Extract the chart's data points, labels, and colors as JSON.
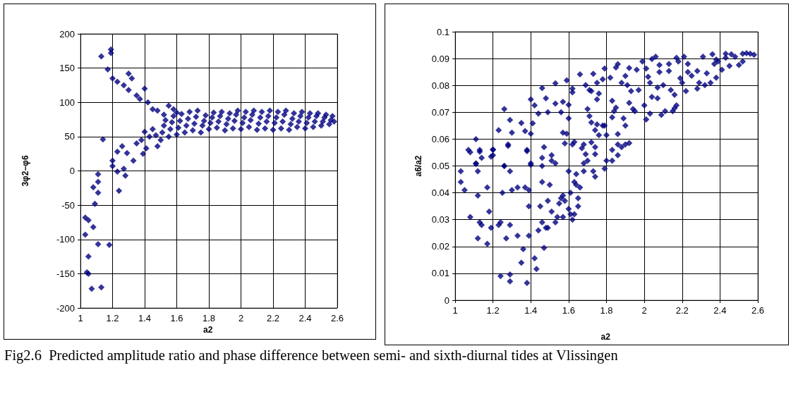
{
  "chart_data": [
    {
      "type": "scatter",
      "xlabel": "a2",
      "ylabel": "3φ2−φ6",
      "xlim": [
        1,
        2.6
      ],
      "xticks": [
        1,
        1.2,
        1.4,
        1.6,
        1.8,
        2,
        2.2,
        2.4,
        2.6
      ],
      "ylim": [
        -200,
        200
      ],
      "yticks": [
        -200,
        -150,
        -100,
        -50,
        0,
        50,
        100,
        150,
        200
      ],
      "grid": true,
      "marker": "diamond",
      "color": "#000080",
      "x": [
        1.03,
        1.05,
        1.08,
        1.03,
        1.11,
        1.18,
        1.05,
        1.04,
        1.05,
        1.07,
        1.13,
        1.09,
        1.11,
        1.08,
        1.11,
        1.11,
        1.14,
        1.2,
        1.2,
        1.23,
        1.26,
        1.29,
        1.33,
        1.23,
        1.27,
        1.28,
        1.24,
        1.35,
        1.39,
        1.41,
        1.4,
        1.45,
        1.48,
        1.38,
        1.43,
        1.47,
        1.13,
        1.19,
        1.19,
        1.17,
        1.2,
        1.23,
        1.27,
        1.3,
        1.32,
        1.3,
        1.35,
        1.37,
        1.4,
        1.42,
        1.45,
        1.48,
        1.52,
        1.55,
        1.58,
        1.6,
        1.5,
        1.51,
        1.52,
        1.53,
        1.55,
        1.56,
        1.57,
        1.58,
        1.6,
        1.61,
        1.62,
        1.63,
        1.65,
        1.66,
        1.67,
        1.68,
        1.7,
        1.71,
        1.72,
        1.73,
        1.75,
        1.76,
        1.77,
        1.78,
        1.8,
        1.81,
        1.82,
        1.83,
        1.85,
        1.86,
        1.87,
        1.88,
        1.9,
        1.91,
        1.92,
        1.93,
        1.95,
        1.96,
        1.97,
        1.98,
        2,
        2.01,
        2.02,
        2.03,
        2.05,
        2.06,
        2.07,
        2.08,
        2.1,
        2.11,
        2.12,
        2.13,
        2.15,
        2.16,
        2.17,
        2.18,
        2.2,
        2.21,
        2.22,
        2.23,
        2.25,
        2.26,
        2.27,
        2.28,
        2.3,
        2.31,
        2.32,
        2.33,
        2.35,
        2.36,
        2.37,
        2.38,
        2.4,
        2.41,
        2.42,
        2.43,
        2.45,
        2.46,
        2.47,
        2.48,
        2.5,
        2.51,
        2.52,
        2.53,
        2.55,
        2.56,
        2.57,
        2.58
      ],
      "values": [
        -68,
        -72,
        -82,
        -93,
        -107,
        -108,
        -125,
        -148,
        -150,
        -172,
        -170,
        -48,
        -32,
        -24,
        -16,
        -5,
        46,
        15,
        7,
        28,
        36,
        26,
        15,
        -1,
        3,
        -7,
        -29,
        40,
        25,
        33,
        57,
        61,
        36,
        45,
        50,
        52,
        167,
        177,
        172,
        148,
        135,
        130,
        125,
        142,
        135,
        118,
        110,
        105,
        120,
        100,
        90,
        88,
        82,
        95,
        90,
        85,
        45,
        56,
        66,
        74,
        50,
        61,
        71,
        80,
        53,
        63,
        73,
        83,
        56,
        66,
        76,
        86,
        59,
        69,
        79,
        88,
        56,
        66,
        73,
        81,
        61,
        70,
        78,
        85,
        63,
        72,
        80,
        86,
        59,
        68,
        76,
        84,
        62,
        73,
        82,
        88,
        61,
        70,
        78,
        86,
        64,
        74,
        82,
        88,
        60,
        69,
        78,
        86,
        62,
        72,
        80,
        88,
        60,
        70,
        78,
        86,
        62,
        72,
        82,
        88,
        60,
        68,
        76,
        84,
        64,
        72,
        80,
        86,
        62,
        70,
        78,
        84,
        64,
        72,
        80,
        84,
        66,
        72,
        78,
        82,
        68,
        74,
        80,
        72
      ],
      "annotations": [
        "Fig2.6  Predicted amplitude ratio and phase difference between semi- and sixth-diurnal tides at Vlissingen"
      ]
    },
    {
      "type": "scatter",
      "xlabel": "a2",
      "ylabel": "a6/a2",
      "xlim": [
        1,
        2.6
      ],
      "xticks": [
        1,
        1.2,
        1.4,
        1.6,
        1.8,
        2,
        2.2,
        2.4,
        2.6
      ],
      "ylim": [
        0,
        0.1
      ],
      "yticks": [
        0,
        0.01,
        0.02,
        0.03,
        0.04,
        0.05,
        0.06,
        0.07,
        0.08,
        0.09,
        0.1
      ],
      "grid": true,
      "marker": "diamond",
      "color": "#000080",
      "x": [
        1.03,
        1.03,
        1.05,
        1.07,
        1.11,
        1.12,
        1.13,
        1.14,
        1.12,
        1.08,
        1.13,
        1.14,
        1.12,
        1.17,
        1.18,
        1.19,
        1.17,
        1.2,
        1.2,
        1.26,
        1.25,
        1.24,
        1.23,
        1.27,
        1.24,
        1.29,
        1.29,
        1.28,
        1.29,
        1.3,
        1.33,
        1.29,
        1.33,
        1.36,
        1.35,
        1.38,
        1.37,
        1.39,
        1.38,
        1.4,
        1.39,
        1.39,
        1.42,
        1.43,
        1.45,
        1.44,
        1.46,
        1.46,
        1.46,
        1.47,
        1.46,
        1.49,
        1.5,
        1.47,
        1.48,
        1.49,
        1.51,
        1.51,
        1.53,
        1.51,
        1.53,
        1.54,
        1.55,
        1.56,
        1.57,
        1.57,
        1.58,
        1.6,
        1.61,
        1.6,
        1.61,
        1.62,
        1.63,
        1.65,
        1.65,
        1.64,
        1.63,
        1.64,
        1.66,
        1.68,
        1.68,
        1.7,
        1.73,
        1.74,
        1.74,
        1.68,
        1.79,
        1.8,
        1.83,
        1.83,
        1.86,
        1.88,
        1.9,
        1.92,
        1.08,
        1.11,
        1.13,
        1.11,
        1.2,
        1.19,
        1.23,
        1.26,
        1.29,
        1.3,
        1.28,
        1.26,
        1.35,
        1.37,
        1.4,
        1.42,
        1.41,
        1.4,
        1.38,
        1.4,
        1.44,
        1.46,
        1.48,
        1.49,
        1.53,
        1.53,
        1.57,
        1.56,
        1.59,
        1.6,
        1.6,
        1.62,
        1.62,
        1.57,
        1.59,
        1.58,
        1.62,
        1.63,
        1.66,
        1.69,
        1.73,
        1.71,
        1.72,
        1.75,
        1.76,
        1.75,
        1.67,
        1.69,
        1.7,
        1.71,
        1.72,
        1.75,
        1.74,
        1.78,
        1.79,
        1.76,
        1.8,
        1.72,
        1.74,
        1.79,
        1.78,
        1.82,
        1.86,
        1.85,
        1.88,
        1.9,
        1.92,
        1.91,
        1.93,
        1.83,
        1.84,
        1.85,
        1.83,
        1.86,
        1.86,
        1.89,
        1.9,
        1.92,
        1.94,
        1.95,
        1.96,
        1.97,
        1.99,
        2.01,
        2,
        2.01,
        2.02,
        2.03,
        2.03,
        2.04,
        2.06,
        2.04,
        2.07,
        2.08,
        2.08,
        2.07,
        2.09,
        2.11,
        2.1,
        2.13,
        2.13,
        2.14,
        2.16,
        2.15,
        2.16,
        2.17,
        2.17,
        2.18,
        2.19,
        2.2,
        2.21,
        2.22,
        2.23,
        2.23,
        2.25,
        2.28,
        2.28,
        2.29,
        2.31,
        2.32,
        2.33,
        2.35,
        2.36,
        2.37,
        2.38,
        2.38,
        2.39,
        2.41,
        2.43,
        2.43,
        2.45,
        2.46,
        2.48,
        2.5,
        2.52,
        2.52,
        2.54,
        2.56,
        2.58
      ],
      "values": [
        0.048,
        0.044,
        0.041,
        0.056,
        0.051,
        0.048,
        0.056,
        0.053,
        0.039,
        0.031,
        0.029,
        0.028,
        0.023,
        0.042,
        0.033,
        0.027,
        0.021,
        0.056,
        0.054,
        0.05,
        0.04,
        0.029,
        0.028,
        0.023,
        0.009,
        0.0096,
        0.007,
        0.058,
        0.048,
        0.041,
        0.042,
        0.028,
        0.024,
        0.019,
        0.014,
        0.0064,
        0.042,
        0.041,
        0.056,
        0.051,
        0.035,
        0.024,
        0.0156,
        0.0116,
        0.035,
        0.026,
        0.029,
        0.053,
        0.05,
        0.057,
        0.044,
        0.037,
        0.043,
        0.0195,
        0.027,
        0.027,
        0.054,
        0.052,
        0.051,
        0.033,
        0.029,
        0.031,
        0.036,
        0.038,
        0.039,
        0.031,
        0.037,
        0.048,
        0.04,
        0.034,
        0.032,
        0.03,
        0.032,
        0.038,
        0.035,
        0.047,
        0.044,
        0.043,
        0.042,
        0.048,
        0.051,
        0.052,
        0.048,
        0.046,
        0.057,
        0.058,
        0.049,
        0.052,
        0.052,
        0.056,
        0.054,
        0.057,
        0.058,
        0.0585,
        0.0551,
        0.06,
        0.0553,
        0.0507,
        0.0562,
        0.0535,
        0.0633,
        0.0712,
        0.0671,
        0.0624,
        0.0575,
        0.05,
        0.066,
        0.063,
        0.0748,
        0.0726,
        0.0659,
        0.062,
        0.0555,
        0.0504,
        0.0695,
        0.079,
        0.0752,
        0.07,
        0.0808,
        0.0732,
        0.0739,
        0.07,
        0.0819,
        0.0728,
        0.0677,
        0.0788,
        0.0774,
        0.0624,
        0.062,
        0.0584,
        0.058,
        0.0589,
        0.0841,
        0.0801,
        0.0843,
        0.0783,
        0.0779,
        0.081,
        0.077,
        0.0748,
        0.0566,
        0.0544,
        0.0712,
        0.0686,
        0.0662,
        0.0655,
        0.0633,
        0.065,
        0.065,
        0.0615,
        0.0615,
        0.0588,
        0.0544,
        0.0863,
        0.0823,
        0.0829,
        0.0879,
        0.0867,
        0.081,
        0.0835,
        0.0865,
        0.0801,
        0.0779,
        0.0743,
        0.0704,
        0.0717,
        0.0681,
        0.0619,
        0.058,
        0.0677,
        0.065,
        0.0735,
        0.0712,
        0.0704,
        0.0858,
        0.0783,
        0.0889,
        0.0863,
        0.0726,
        0.0673,
        0.0832,
        0.081,
        0.0695,
        0.0898,
        0.0907,
        0.0757,
        0.0792,
        0.085,
        0.0876,
        0.0752,
        0.069,
        0.0704,
        0.0801,
        0.0854,
        0.088,
        0.0783,
        0.0765,
        0.0704,
        0.0715,
        0.0726,
        0.0903,
        0.0889,
        0.0827,
        0.081,
        0.0907,
        0.0779,
        0.085,
        0.088,
        0.0836,
        0.0854,
        0.0788,
        0.081,
        0.0907,
        0.0801,
        0.0845,
        0.081,
        0.0916,
        0.088,
        0.0829,
        0.0896,
        0.0889,
        0.0858,
        0.0918,
        0.0903,
        0.0873,
        0.0916,
        0.0907,
        0.0876,
        0.0889,
        0.0918,
        0.092,
        0.0918,
        0.0914
      ]
    }
  ]
}
